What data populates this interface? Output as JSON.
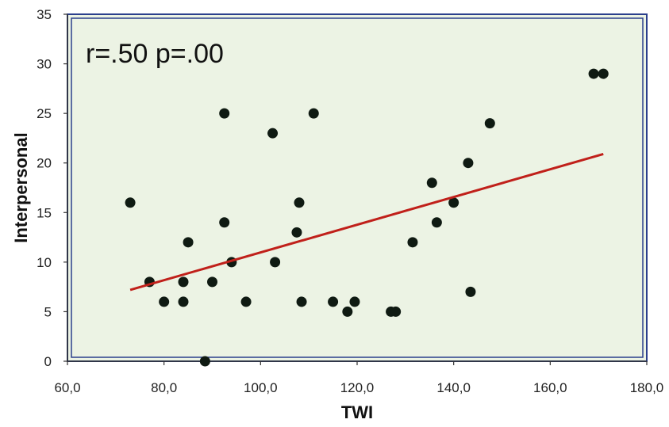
{
  "chart_data": {
    "type": "scatter",
    "title": "",
    "annotation": "r=.50 p=.00",
    "xlabel": "TWI",
    "ylabel": "Interpersonal",
    "xlim": [
      60,
      180
    ],
    "ylim": [
      0,
      35
    ],
    "x_ticks": [
      60,
      80,
      100,
      120,
      140,
      160,
      180
    ],
    "x_tick_labels": [
      "60,0",
      "80,0",
      "100,0",
      "120,0",
      "140,0",
      "160,0",
      "180,0"
    ],
    "y_ticks": [
      0,
      5,
      10,
      15,
      20,
      25,
      30,
      35
    ],
    "y_tick_labels": [
      "0",
      "5",
      "10",
      "15",
      "20",
      "25",
      "30",
      "35"
    ],
    "grid": false,
    "legend": "none",
    "points": [
      {
        "x": 73,
        "y": 16
      },
      {
        "x": 77,
        "y": 8
      },
      {
        "x": 80,
        "y": 6
      },
      {
        "x": 84,
        "y": 8
      },
      {
        "x": 84,
        "y": 6
      },
      {
        "x": 85,
        "y": 12
      },
      {
        "x": 88.5,
        "y": 0
      },
      {
        "x": 90,
        "y": 8
      },
      {
        "x": 92.5,
        "y": 25
      },
      {
        "x": 92.5,
        "y": 14
      },
      {
        "x": 94,
        "y": 10
      },
      {
        "x": 97,
        "y": 6
      },
      {
        "x": 102.5,
        "y": 23
      },
      {
        "x": 103,
        "y": 10
      },
      {
        "x": 107.5,
        "y": 13
      },
      {
        "x": 108,
        "y": 16
      },
      {
        "x": 108.5,
        "y": 6
      },
      {
        "x": 111,
        "y": 25
      },
      {
        "x": 115,
        "y": 6
      },
      {
        "x": 118,
        "y": 5
      },
      {
        "x": 119.5,
        "y": 6
      },
      {
        "x": 127,
        "y": 5
      },
      {
        "x": 128,
        "y": 5
      },
      {
        "x": 131.5,
        "y": 12
      },
      {
        "x": 135.5,
        "y": 18
      },
      {
        "x": 136.5,
        "y": 14
      },
      {
        "x": 140,
        "y": 16
      },
      {
        "x": 143,
        "y": 20
      },
      {
        "x": 143.5,
        "y": 7
      },
      {
        "x": 147.5,
        "y": 24
      },
      {
        "x": 169,
        "y": 29
      },
      {
        "x": 171,
        "y": 29
      }
    ],
    "trendline": {
      "x": [
        73,
        171
      ],
      "y": [
        7.2,
        20.9
      ]
    },
    "colors": {
      "plot_background": "#ecf3e4",
      "plot_border": "#2b3f8c",
      "points": "#0f1a12",
      "trendline": "#c0201a"
    }
  }
}
